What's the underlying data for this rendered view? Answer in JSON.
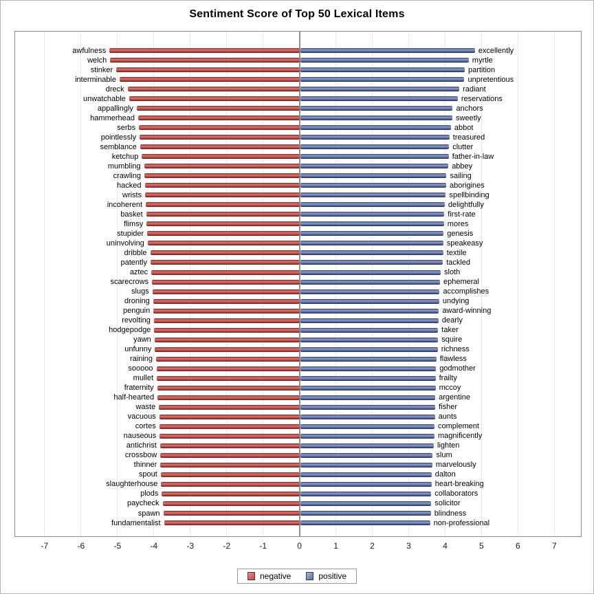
{
  "title": "Sentiment Score of Top 50 Lexical Items",
  "legend": {
    "negative_label": "negative",
    "positive_label": "positive"
  },
  "colors": {
    "negative": "#c0504d",
    "positive": "#5a6da3",
    "zero_axis": "#909090",
    "gridline": "#eaeaea",
    "plot_border": "#8a8a8a"
  },
  "chart_data": {
    "type": "bar",
    "orientation": "horizontal-diverging",
    "title": "Sentiment Score of Top 50 Lexical Items",
    "xlabel": "",
    "ylabel": "",
    "xlim": [
      -7.81,
      7.73
    ],
    "x_ticks": [
      -7,
      -6,
      -5,
      -4,
      -3,
      -2,
      -1,
      0,
      1,
      2,
      3,
      4,
      5,
      6,
      7
    ],
    "grid": "vertical",
    "legend_position": "bottom-center",
    "legend_entries": [
      "negative",
      "positive"
    ],
    "rows": [
      {
        "neg": "awfulness",
        "neg_value": -5.22,
        "pos": "excellently",
        "pos_value": 4.8
      },
      {
        "neg": "welch",
        "neg_value": -5.2,
        "pos": "myrtle",
        "pos_value": 4.63
      },
      {
        "neg": "stinker",
        "neg_value": -5.03,
        "pos": "partition",
        "pos_value": 4.52
      },
      {
        "neg": "interminable",
        "neg_value": -4.94,
        "pos": "unpretentious",
        "pos_value": 4.51
      },
      {
        "neg": "dreck",
        "neg_value": -4.72,
        "pos": "radiant",
        "pos_value": 4.37
      },
      {
        "neg": "unwatchable",
        "neg_value": -4.68,
        "pos": "reservations",
        "pos_value": 4.33
      },
      {
        "neg": "appallingly",
        "neg_value": -4.47,
        "pos": "anchors",
        "pos_value": 4.19
      },
      {
        "neg": "hammerhead",
        "neg_value": -4.43,
        "pos": "sweetly",
        "pos_value": 4.18
      },
      {
        "neg": "serbs",
        "neg_value": -4.41,
        "pos": "abbot",
        "pos_value": 4.14
      },
      {
        "neg": "pointlessly",
        "neg_value": -4.39,
        "pos": "treasured",
        "pos_value": 4.1
      },
      {
        "neg": "semblance",
        "neg_value": -4.38,
        "pos": "clutter",
        "pos_value": 4.09
      },
      {
        "neg": "ketchup",
        "neg_value": -4.33,
        "pos": "father-in-law",
        "pos_value": 4.08
      },
      {
        "neg": "mumbling",
        "neg_value": -4.27,
        "pos": "abbey",
        "pos_value": 4.07
      },
      {
        "neg": "crawling",
        "neg_value": -4.26,
        "pos": "sailing",
        "pos_value": 4.02
      },
      {
        "neg": "hacked",
        "neg_value": -4.25,
        "pos": "aborigines",
        "pos_value": 4.01
      },
      {
        "neg": "wrists",
        "neg_value": -4.24,
        "pos": "spellbinding",
        "pos_value": 4.0
      },
      {
        "neg": "incoherent",
        "neg_value": -4.22,
        "pos": "delightfully",
        "pos_value": 3.97
      },
      {
        "neg": "basket",
        "neg_value": -4.21,
        "pos": "first-rate",
        "pos_value": 3.96
      },
      {
        "neg": "flimsy",
        "neg_value": -4.2,
        "pos": "mores",
        "pos_value": 3.95
      },
      {
        "neg": "stupider",
        "neg_value": -4.18,
        "pos": "genesis",
        "pos_value": 3.94
      },
      {
        "neg": "uninvolving",
        "neg_value": -4.17,
        "pos": "speakeasy",
        "pos_value": 3.93
      },
      {
        "neg": "dribble",
        "neg_value": -4.1,
        "pos": "textile",
        "pos_value": 3.93
      },
      {
        "neg": "patently",
        "neg_value": -4.09,
        "pos": "tackled",
        "pos_value": 3.92
      },
      {
        "neg": "aztec",
        "neg_value": -4.07,
        "pos": "sloth",
        "pos_value": 3.86
      },
      {
        "neg": "scarecrows",
        "neg_value": -4.05,
        "pos": "ephemeral",
        "pos_value": 3.84
      },
      {
        "neg": "slugs",
        "neg_value": -4.04,
        "pos": "accomplishes",
        "pos_value": 3.83
      },
      {
        "neg": "droning",
        "neg_value": -4.02,
        "pos": "undying",
        "pos_value": 3.82
      },
      {
        "neg": "penguin",
        "neg_value": -4.01,
        "pos": "award-winning",
        "pos_value": 3.81
      },
      {
        "neg": "revolting",
        "neg_value": -4.0,
        "pos": "dearly",
        "pos_value": 3.8
      },
      {
        "neg": "hodgepodge",
        "neg_value": -3.99,
        "pos": "taker",
        "pos_value": 3.79
      },
      {
        "neg": "yawn",
        "neg_value": -3.98,
        "pos": "squire",
        "pos_value": 3.79
      },
      {
        "neg": "unfunny",
        "neg_value": -3.97,
        "pos": "richness",
        "pos_value": 3.78
      },
      {
        "neg": "raining",
        "neg_value": -3.94,
        "pos": "flawless",
        "pos_value": 3.74
      },
      {
        "neg": "sooooo",
        "neg_value": -3.93,
        "pos": "godmother",
        "pos_value": 3.73
      },
      {
        "neg": "mullet",
        "neg_value": -3.92,
        "pos": "frailty",
        "pos_value": 3.72
      },
      {
        "neg": "fraternity",
        "neg_value": -3.91,
        "pos": "mccoy",
        "pos_value": 3.72
      },
      {
        "neg": "half-hearted",
        "neg_value": -3.9,
        "pos": "argentine",
        "pos_value": 3.71
      },
      {
        "neg": "waste",
        "neg_value": -3.86,
        "pos": "fisher",
        "pos_value": 3.71
      },
      {
        "neg": "vacuous",
        "neg_value": -3.85,
        "pos": "aunts",
        "pos_value": 3.7
      },
      {
        "neg": "cortes",
        "neg_value": -3.85,
        "pos": "complement",
        "pos_value": 3.69
      },
      {
        "neg": "nauseous",
        "neg_value": -3.84,
        "pos": "magnificently",
        "pos_value": 3.69
      },
      {
        "neg": "antichrist",
        "neg_value": -3.83,
        "pos": "lighten",
        "pos_value": 3.67
      },
      {
        "neg": "crossbow",
        "neg_value": -3.82,
        "pos": "slum",
        "pos_value": 3.64
      },
      {
        "neg": "thinner",
        "neg_value": -3.82,
        "pos": "marvelously",
        "pos_value": 3.63
      },
      {
        "neg": "spout",
        "neg_value": -3.81,
        "pos": "dalton",
        "pos_value": 3.61
      },
      {
        "neg": "slaughterhouse",
        "neg_value": -3.8,
        "pos": "heart-breaking",
        "pos_value": 3.61
      },
      {
        "neg": "plods",
        "neg_value": -3.78,
        "pos": "collaborators",
        "pos_value": 3.6
      },
      {
        "neg": "paycheck",
        "neg_value": -3.76,
        "pos": "solicitor",
        "pos_value": 3.6
      },
      {
        "neg": "spawn",
        "neg_value": -3.74,
        "pos": "blindness",
        "pos_value": 3.59
      },
      {
        "neg": "fundamentalist",
        "neg_value": -3.72,
        "pos": "non-professional",
        "pos_value": 3.57
      }
    ]
  }
}
